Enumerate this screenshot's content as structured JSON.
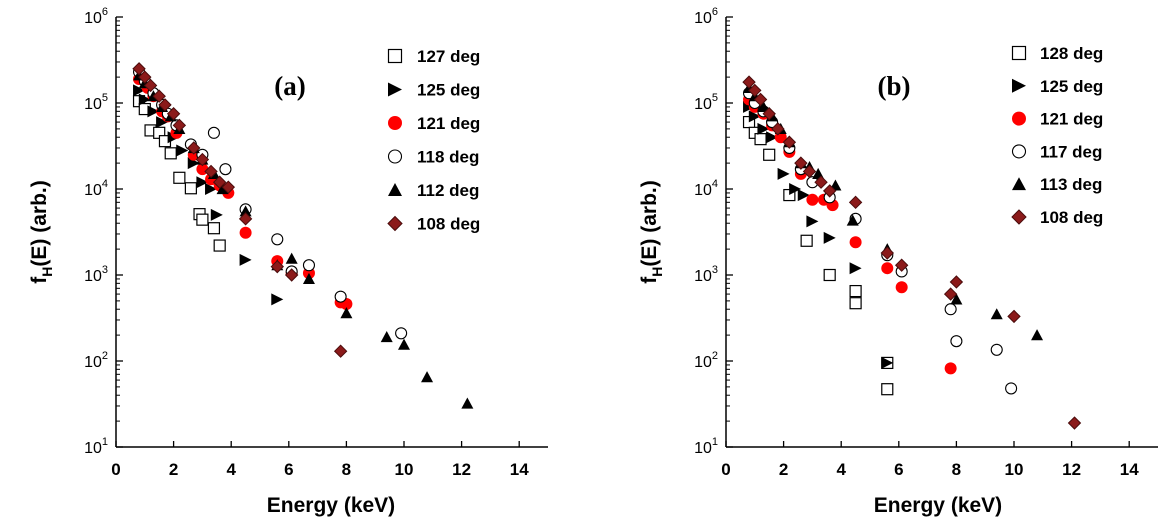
{
  "colors": {
    "axis": "#000000",
    "red": "#ff0000",
    "dark_red": "#8b1a1a",
    "black": "#000000",
    "open": "#ffffff"
  },
  "chart_data": [
    {
      "type": "scatter",
      "panel_label": "(a)",
      "xlabel": "Energy (keV)",
      "ylabel_main": "f",
      "ylabel_sub": "H",
      "ylabel_rest": "(E) (arb.)",
      "xlim": [
        0,
        15
      ],
      "ylim": [
        10,
        1000000
      ],
      "yscale": "log",
      "x_ticks": [
        0,
        2,
        4,
        6,
        8,
        10,
        12,
        14
      ],
      "x_tick_labels": [
        "0",
        "2",
        "4",
        "6",
        "8",
        "10",
        "12",
        "14"
      ],
      "y_ticks": [
        10,
        100,
        1000,
        10000,
        100000,
        1000000
      ],
      "y_tick_bases": [
        "10",
        "10",
        "10",
        "10",
        "10",
        "10"
      ],
      "y_tick_exponents": [
        "1",
        "2",
        "3",
        "4",
        "5",
        "6"
      ],
      "grid": false,
      "legend_position": "top-right",
      "series": [
        {
          "name": "127 deg",
          "marker": "square-open",
          "x": [
            0.8,
            1.0,
            1.2,
            1.5,
            1.7,
            1.9,
            2.2,
            2.6,
            2.9,
            3.0,
            3.4,
            3.6
          ],
          "y": [
            105000,
            85000,
            48000,
            45000,
            36000,
            26000,
            13500,
            10200,
            5100,
            4400,
            3500,
            2200
          ]
        },
        {
          "name": "125 deg",
          "marker": "triangle-right",
          "x": [
            0.8,
            1.0,
            1.3,
            1.6,
            2.0,
            2.3,
            2.7,
            3.0,
            3.3,
            3.5,
            4.5,
            5.6
          ],
          "y": [
            140000,
            110000,
            80000,
            60000,
            40000,
            28000,
            20000,
            12000,
            10000,
            5000,
            1500,
            520
          ]
        },
        {
          "name": "121 deg",
          "marker": "circle-filled",
          "x": [
            0.8,
            1.1,
            1.3,
            1.6,
            1.8,
            2.1,
            2.7,
            3.0,
            3.3,
            3.6,
            3.9,
            4.5,
            5.6,
            6.1,
            6.7,
            7.8,
            8.0
          ],
          "y": [
            190000,
            150000,
            120000,
            80000,
            70000,
            45000,
            25000,
            17000,
            13000,
            11000,
            9000,
            3100,
            1450,
            1050,
            1050,
            480,
            460
          ]
        },
        {
          "name": "118 deg",
          "marker": "circle-open",
          "x": [
            0.8,
            1.0,
            1.3,
            1.6,
            1.8,
            2.1,
            2.6,
            3.0,
            3.4,
            3.8,
            4.5,
            5.6,
            6.1,
            6.7,
            7.8,
            9.9
          ],
          "y": [
            230000,
            180000,
            130000,
            95000,
            75000,
            55000,
            33000,
            25000,
            45000,
            17000,
            5800,
            2600,
            1100,
            1300,
            560,
            210
          ]
        },
        {
          "name": "112 deg",
          "marker": "triangle-up",
          "x": [
            0.8,
            1.0,
            1.3,
            1.6,
            1.9,
            2.2,
            2.7,
            3.0,
            3.4,
            3.7,
            4.5,
            5.6,
            6.1,
            6.7,
            8.0,
            9.4,
            10.0,
            10.8,
            12.2
          ],
          "y": [
            210000,
            170000,
            120000,
            90000,
            70000,
            50000,
            30000,
            22000,
            15000,
            10000,
            5500,
            1300,
            1550,
            900,
            360,
            190,
            155,
            65,
            32
          ]
        },
        {
          "name": "108 deg",
          "marker": "diamond-filled",
          "x": [
            0.8,
            1.0,
            1.2,
            1.5,
            1.7,
            2.0,
            2.2,
            2.7,
            3.0,
            3.3,
            3.6,
            3.9,
            4.5,
            5.6,
            6.1,
            7.8
          ],
          "y": [
            250000,
            200000,
            160000,
            120000,
            95000,
            75000,
            55000,
            30000,
            22000,
            16000,
            12000,
            10500,
            4500,
            1250,
            1000,
            130
          ]
        }
      ]
    },
    {
      "type": "scatter",
      "panel_label": "(b)",
      "xlabel": "Energy (keV)",
      "ylabel_main": "f",
      "ylabel_sub": "H",
      "ylabel_rest": "(E) (arb.)",
      "xlim": [
        0,
        15
      ],
      "ylim": [
        10,
        1000000
      ],
      "yscale": "log",
      "x_ticks": [
        0,
        2,
        4,
        6,
        8,
        10,
        12,
        14
      ],
      "x_tick_labels": [
        "0",
        "2",
        "4",
        "6",
        "8",
        "10",
        "12",
        "14"
      ],
      "y_ticks": [
        10,
        100,
        1000,
        10000,
        100000,
        1000000
      ],
      "y_tick_bases": [
        "10",
        "10",
        "10",
        "10",
        "10",
        "10"
      ],
      "y_tick_exponents": [
        "1",
        "2",
        "3",
        "4",
        "5",
        "6"
      ],
      "grid": false,
      "legend_position": "top-right",
      "series": [
        {
          "name": "128 deg",
          "marker": "square-open",
          "x": [
            0.8,
            1.0,
            1.2,
            1.5,
            2.2,
            2.8,
            3.6,
            4.5,
            4.5,
            5.6,
            5.6
          ],
          "y": [
            60000,
            45000,
            38000,
            25000,
            8500,
            2500,
            1000,
            650,
            470,
            95,
            47
          ]
        },
        {
          "name": "125 deg",
          "marker": "triangle-right",
          "x": [
            0.8,
            1.0,
            1.3,
            1.6,
            2.0,
            2.4,
            2.7,
            3.0,
            3.6,
            4.5,
            5.6
          ],
          "y": [
            90000,
            70000,
            50000,
            40000,
            15000,
            10000,
            8500,
            4200,
            2700,
            1200,
            95
          ]
        },
        {
          "name": "121 deg",
          "marker": "circle-filled",
          "x": [
            0.8,
            1.0,
            1.3,
            1.6,
            1.9,
            2.2,
            2.6,
            3.0,
            3.4,
            3.7,
            4.5,
            5.6,
            6.1,
            7.8
          ],
          "y": [
            110000,
            90000,
            75000,
            55000,
            40000,
            27000,
            15000,
            7500,
            7500,
            6500,
            2400,
            1200,
            720,
            82
          ]
        },
        {
          "name": "117 deg",
          "marker": "circle-open",
          "x": [
            0.8,
            1.0,
            1.3,
            1.6,
            2.2,
            2.6,
            3.0,
            3.6,
            4.5,
            5.6,
            6.1,
            7.8,
            8.0,
            9.4,
            9.9
          ],
          "y": [
            130000,
            100000,
            80000,
            60000,
            30000,
            17000,
            12000,
            8000,
            4500,
            1700,
            1100,
            400,
            170,
            135,
            48
          ]
        },
        {
          "name": "113 deg",
          "marker": "triangle-up",
          "x": [
            0.8,
            1.0,
            1.3,
            1.6,
            1.9,
            2.2,
            2.6,
            2.9,
            3.2,
            3.8,
            4.4,
            5.6,
            8.0,
            9.4,
            10.8
          ],
          "y": [
            150000,
            120000,
            90000,
            70000,
            50000,
            35000,
            20000,
            18000,
            15000,
            11000,
            4300,
            2000,
            520,
            350,
            200
          ]
        },
        {
          "name": "108 deg",
          "marker": "diamond-filled",
          "x": [
            0.8,
            1.0,
            1.2,
            1.5,
            1.8,
            2.2,
            2.6,
            2.9,
            3.3,
            3.6,
            4.5,
            5.6,
            6.1,
            7.8,
            8.0,
            10.0,
            12.1
          ],
          "y": [
            175000,
            140000,
            110000,
            75000,
            50000,
            35000,
            20000,
            16000,
            12000,
            9500,
            7000,
            1800,
            1300,
            600,
            830,
            330,
            19
          ]
        }
      ]
    }
  ]
}
